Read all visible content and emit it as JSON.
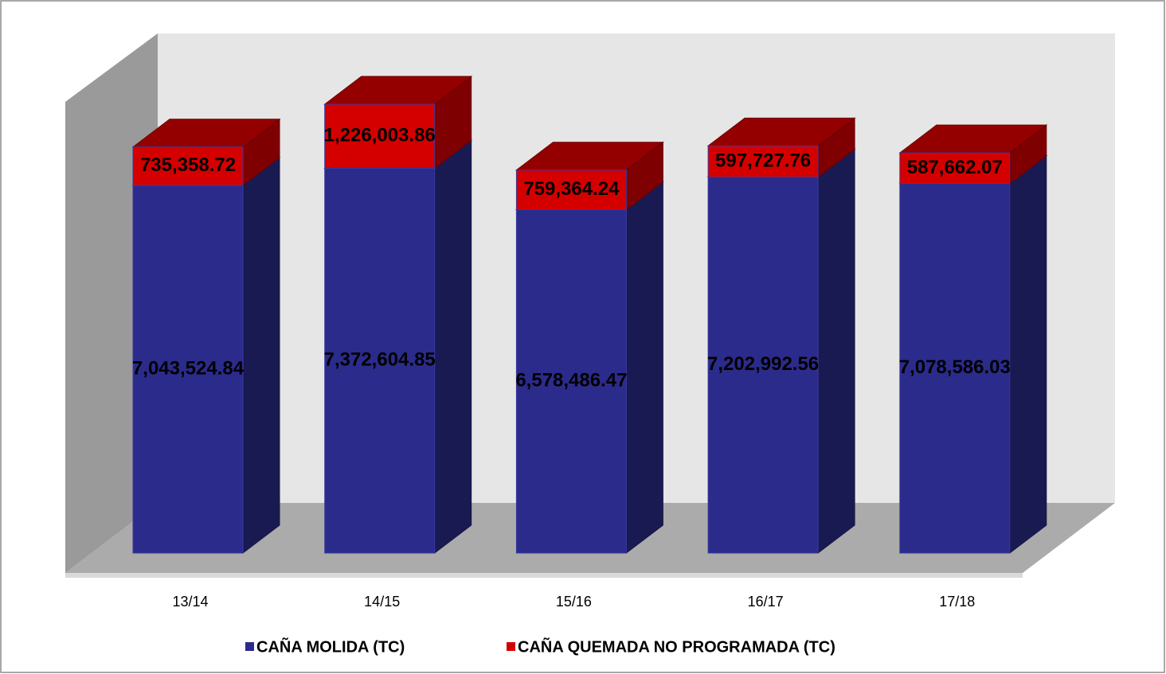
{
  "chart_data": {
    "type": "bar3d_stacked",
    "categories": [
      "13/14",
      "14/15",
      "15/16",
      "16/17",
      "17/18"
    ],
    "series": [
      {
        "name": "CAÑA MOLIDA (TC)",
        "color": "#2b2b8b",
        "values": [
          7043524.84,
          7372604.85,
          6578486.47,
          7202992.56,
          7078586.03
        ],
        "value_labels": [
          "7,043,524.84",
          "7,372,604.85",
          "6,578,486.47",
          "7,202,992.56",
          "7,078,586.03"
        ]
      },
      {
        "name": "CAÑA QUEMADA NO PROGRAMADA (TC)",
        "color": "#d40000",
        "values": [
          735358.72,
          1226003.86,
          759364.24,
          597727.76,
          587662.07
        ],
        "value_labels": [
          "735,358.72",
          "1,226,003.86",
          "759,364.24",
          "597,727.76",
          "587,662.07"
        ]
      }
    ],
    "legend": "bottom"
  }
}
